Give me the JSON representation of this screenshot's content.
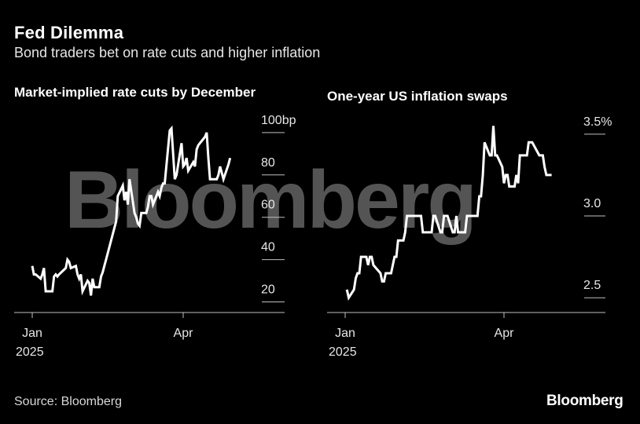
{
  "header": {
    "title": "Fed Dilemma",
    "subtitle": "Bond traders bet on rate cuts and higher inflation"
  },
  "footer": {
    "source": "Source: Bloomberg",
    "brand": "Bloomberg",
    "watermark": "Bloomberg"
  },
  "colors": {
    "background": "#000000",
    "line": "#ffffff",
    "grid": "#bfbfbf",
    "watermark": "#888888"
  },
  "chart_data": [
    {
      "type": "line",
      "title": "Market-implied rate cuts by December",
      "xlabel": "",
      "ylabel": "",
      "x_ticks": [
        "Jan",
        "Apr"
      ],
      "x_sublabel": "2025",
      "y_ticks": [
        {
          "value": 20,
          "label": "20"
        },
        {
          "value": 40,
          "label": "40"
        },
        {
          "value": 60,
          "label": "60"
        },
        {
          "value": 80,
          "label": "80"
        },
        {
          "value": 100,
          "label": "100bp"
        }
      ],
      "ylim": [
        15,
        107
      ],
      "xlim": [
        "2024-12-29",
        "2025-05-31"
      ],
      "grid": "horizontal",
      "series": [
        {
          "x": [
            "2025-01-01",
            "2025-01-02",
            "2025-01-03",
            "2025-01-06",
            "2025-01-07",
            "2025-01-08",
            "2025-01-09",
            "2025-01-10",
            "2025-01-13",
            "2025-01-14",
            "2025-01-15",
            "2025-01-16",
            "2025-01-17",
            "2025-01-21",
            "2025-01-22",
            "2025-01-23",
            "2025-01-24",
            "2025-01-27",
            "2025-01-28",
            "2025-01-29",
            "2025-01-30",
            "2025-01-31",
            "2025-02-03",
            "2025-02-04",
            "2025-02-05",
            "2025-02-06",
            "2025-02-07",
            "2025-02-10",
            "2025-02-11",
            "2025-02-12",
            "2025-02-13",
            "2025-02-14",
            "2025-02-18",
            "2025-02-19",
            "2025-02-20",
            "2025-02-21",
            "2025-02-24",
            "2025-02-25",
            "2025-02-26",
            "2025-02-27",
            "2025-02-28",
            "2025-03-03",
            "2025-03-04",
            "2025-03-05",
            "2025-03-06",
            "2025-03-07",
            "2025-03-10",
            "2025-03-11",
            "2025-03-12",
            "2025-03-13",
            "2025-03-14",
            "2025-03-17",
            "2025-03-18",
            "2025-03-19",
            "2025-03-20",
            "2025-03-21",
            "2025-03-24",
            "2025-03-25",
            "2025-03-26",
            "2025-03-27",
            "2025-03-28",
            "2025-03-31",
            "2025-04-01",
            "2025-04-02",
            "2025-04-03",
            "2025-04-04",
            "2025-04-07",
            "2025-04-08",
            "2025-04-09",
            "2025-04-10",
            "2025-04-11",
            "2025-04-14",
            "2025-04-15",
            "2025-04-16",
            "2025-04-17",
            "2025-04-21",
            "2025-04-22",
            "2025-04-23",
            "2025-04-24",
            "2025-04-25",
            "2025-04-28",
            "2025-04-29"
          ],
          "values": [
            37,
            33,
            33,
            31,
            33,
            36,
            25,
            25,
            25,
            32,
            33,
            32,
            33,
            36,
            40,
            39,
            36,
            37,
            33,
            31,
            33,
            25,
            30,
            29,
            23,
            31,
            27,
            27,
            32,
            34,
            37,
            40,
            52,
            55,
            58,
            70,
            75,
            68,
            72,
            66,
            78,
            62,
            60,
            57,
            56,
            62,
            62,
            65,
            70,
            70,
            66,
            72,
            70,
            74,
            76,
            76,
            101,
            102,
            90,
            78,
            80,
            95,
            84,
            85,
            88,
            82,
            86,
            84,
            92,
            94,
            95,
            98,
            100,
            88,
            78,
            78,
            80,
            84,
            81,
            78,
            85,
            88
          ]
        }
      ]
    },
    {
      "type": "line",
      "title": "One-year US inflation swaps",
      "xlabel": "",
      "ylabel": "",
      "x_ticks": [
        "Jan",
        "Apr"
      ],
      "x_sublabel": "2025",
      "y_ticks": [
        {
          "value": 2.5,
          "label": "2.5"
        },
        {
          "value": 3.0,
          "label": "3.0"
        },
        {
          "value": 3.5,
          "label": "3.5%"
        }
      ],
      "ylim": [
        2.41,
        3.6
      ],
      "xlim": [
        "2024-12-29",
        "2025-05-31"
      ],
      "grid": "horizontal",
      "series": [
        {
          "x": [
            "2025-01-02",
            "2025-01-03",
            "2025-01-06",
            "2025-01-07",
            "2025-01-08",
            "2025-01-09",
            "2025-01-10",
            "2025-01-13",
            "2025-01-14",
            "2025-01-15",
            "2025-01-16",
            "2025-01-17",
            "2025-01-21",
            "2025-01-22",
            "2025-01-23",
            "2025-01-24",
            "2025-01-27",
            "2025-01-28",
            "2025-01-29",
            "2025-01-30",
            "2025-01-31",
            "2025-02-03",
            "2025-02-04",
            "2025-02-05",
            "2025-02-06",
            "2025-02-07",
            "2025-02-10",
            "2025-02-11",
            "2025-02-12",
            "2025-02-13",
            "2025-02-14",
            "2025-02-18",
            "2025-02-19",
            "2025-02-20",
            "2025-02-21",
            "2025-02-24",
            "2025-02-25",
            "2025-02-26",
            "2025-02-27",
            "2025-02-28",
            "2025-03-03",
            "2025-03-04",
            "2025-03-05",
            "2025-03-06",
            "2025-03-07",
            "2025-03-10",
            "2025-03-11",
            "2025-03-12",
            "2025-03-13",
            "2025-03-14",
            "2025-03-17",
            "2025-03-18",
            "2025-03-19",
            "2025-03-20",
            "2025-03-21",
            "2025-03-24",
            "2025-03-25",
            "2025-03-26",
            "2025-03-27",
            "2025-03-28",
            "2025-03-31",
            "2025-04-01",
            "2025-04-02",
            "2025-04-03",
            "2025-04-04",
            "2025-04-07",
            "2025-04-08",
            "2025-04-09",
            "2025-04-10",
            "2025-04-11",
            "2025-04-14",
            "2025-04-15",
            "2025-04-16",
            "2025-04-17",
            "2025-04-21",
            "2025-04-22",
            "2025-04-23",
            "2025-04-24",
            "2025-04-25",
            "2025-04-28"
          ],
          "values": [
            2.55,
            2.5,
            2.55,
            2.62,
            2.65,
            2.65,
            2.75,
            2.75,
            2.7,
            2.75,
            2.75,
            2.7,
            2.65,
            2.6,
            2.6,
            2.65,
            2.65,
            2.7,
            2.75,
            2.75,
            2.85,
            2.85,
            2.9,
            3.0,
            3.0,
            3.0,
            3.0,
            3.0,
            3.0,
            3.0,
            2.9,
            2.9,
            2.9,
            3.0,
            3.0,
            2.9,
            2.9,
            3.0,
            3.0,
            3.0,
            2.9,
            2.9,
            3.0,
            2.9,
            2.9,
            2.9,
            3.0,
            3.0,
            3.0,
            3.0,
            3.0,
            3.12,
            3.12,
            3.25,
            3.45,
            3.37,
            3.37,
            3.55,
            3.37,
            3.37,
            3.3,
            3.2,
            3.25,
            3.25,
            3.18,
            3.18,
            3.25,
            3.2,
            3.37,
            3.37,
            3.37,
            3.45,
            3.45,
            3.45,
            3.37,
            3.37,
            3.37,
            3.3,
            3.25,
            3.25
          ]
        }
      ]
    }
  ]
}
